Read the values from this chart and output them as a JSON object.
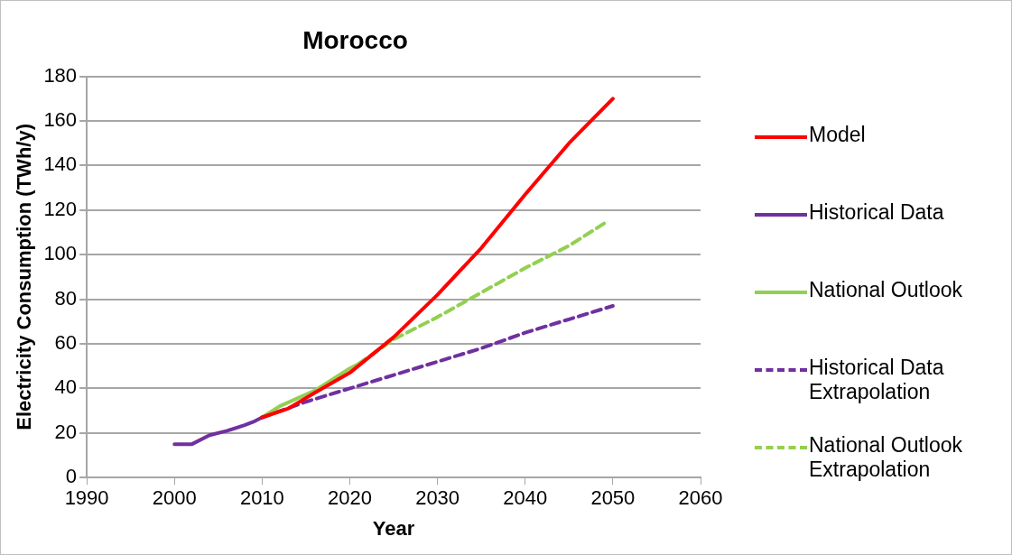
{
  "chart_data": {
    "type": "line",
    "title": "Morocco",
    "xlabel": "Year",
    "ylabel": "Electricity Consumption (TWh/y)",
    "xlim": [
      1990,
      2060
    ],
    "xticks": [
      1990,
      2000,
      2010,
      2020,
      2030,
      2040,
      2050,
      2060
    ],
    "ylim": [
      0,
      180
    ],
    "yticks": [
      0,
      20,
      40,
      60,
      80,
      100,
      120,
      140,
      160,
      180
    ],
    "grid": "y",
    "legend": "right",
    "marker": "none",
    "series": [
      {
        "name": "Model",
        "color": "#ff0000",
        "line_style": "solid",
        "x": [
          2010,
          2013,
          2016,
          2020,
          2025,
          2030,
          2035,
          2040,
          2045,
          2050
        ],
        "values": [
          27,
          31,
          38,
          47,
          63,
          82,
          103,
          127,
          150,
          170
        ]
      },
      {
        "name": "Historical Data",
        "color": "#7030a0",
        "line_style": "solid",
        "x": [
          2000,
          2002,
          2004,
          2006,
          2008,
          2009,
          2010
        ],
        "values": [
          15,
          15,
          19,
          21,
          23.5,
          25,
          27
        ]
      },
      {
        "name": "National Outlook",
        "color": "#92d050",
        "line_style": "solid",
        "x": [
          2010,
          2012,
          2016,
          2020,
          2021
        ],
        "values": [
          27,
          32,
          39,
          49,
          51
        ]
      },
      {
        "name": "Historical Data Extrapolation",
        "color": "#7030a0",
        "line_style": "dashed",
        "x": [
          2010,
          2015,
          2020,
          2025,
          2030,
          2035,
          2040,
          2045,
          2050
        ],
        "values": [
          27,
          34,
          40,
          46,
          52,
          58,
          65,
          71,
          77
        ]
      },
      {
        "name": "National Outlook Extrapolation",
        "color": "#92d050",
        "line_style": "dashed",
        "x": [
          2021,
          2025,
          2030,
          2035,
          2040,
          2045,
          2049
        ],
        "values": [
          51,
          62,
          72,
          83,
          94,
          104,
          114
        ]
      }
    ]
  }
}
